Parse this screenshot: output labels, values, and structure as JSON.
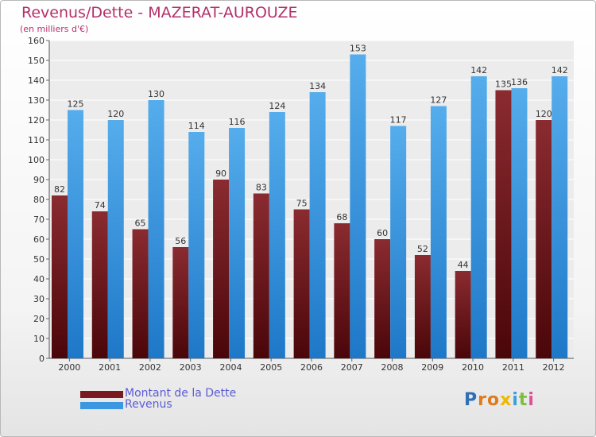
{
  "header": {
    "title": "Revenus/Dette - MAZERAT-AUROUZE",
    "subtitle": "(en milliers d'€)"
  },
  "chart_data": {
    "type": "bar",
    "categories": [
      "2000",
      "2001",
      "2002",
      "2003",
      "2004",
      "2005",
      "2006",
      "2007",
      "2008",
      "2009",
      "2010",
      "2011",
      "2012"
    ],
    "series": [
      {
        "name": "Montant de la Dette",
        "color": "#7a1a1e",
        "values": [
          82,
          74,
          65,
          56,
          90,
          83,
          75,
          68,
          60,
          52,
          44,
          135,
          120
        ]
      },
      {
        "name": "Revenus",
        "color": "#3b98e0",
        "values": [
          125,
          120,
          130,
          114,
          116,
          124,
          134,
          153,
          117,
          127,
          142,
          136,
          142
        ]
      }
    ],
    "ylim": [
      0,
      160
    ],
    "yticks": [
      0,
      10,
      20,
      30,
      40,
      50,
      60,
      70,
      80,
      90,
      100,
      110,
      120,
      130,
      140,
      150,
      160
    ],
    "grid": true,
    "legend_position": "bottom-left"
  },
  "legend": [
    {
      "label": "Montant de la Dette",
      "color": "#7a1a1e"
    },
    {
      "label": "Revenus",
      "color": "#3b98e0"
    }
  ],
  "logo": {
    "letters": [
      "P",
      "r",
      "o",
      "x",
      "i",
      "t",
      "i"
    ],
    "colors": [
      "#2f6fb5",
      "#e07a1f",
      "#e07a1f",
      "#f0b800",
      "#3aa0d8",
      "#7bbf3a",
      "#e04f9a"
    ]
  }
}
